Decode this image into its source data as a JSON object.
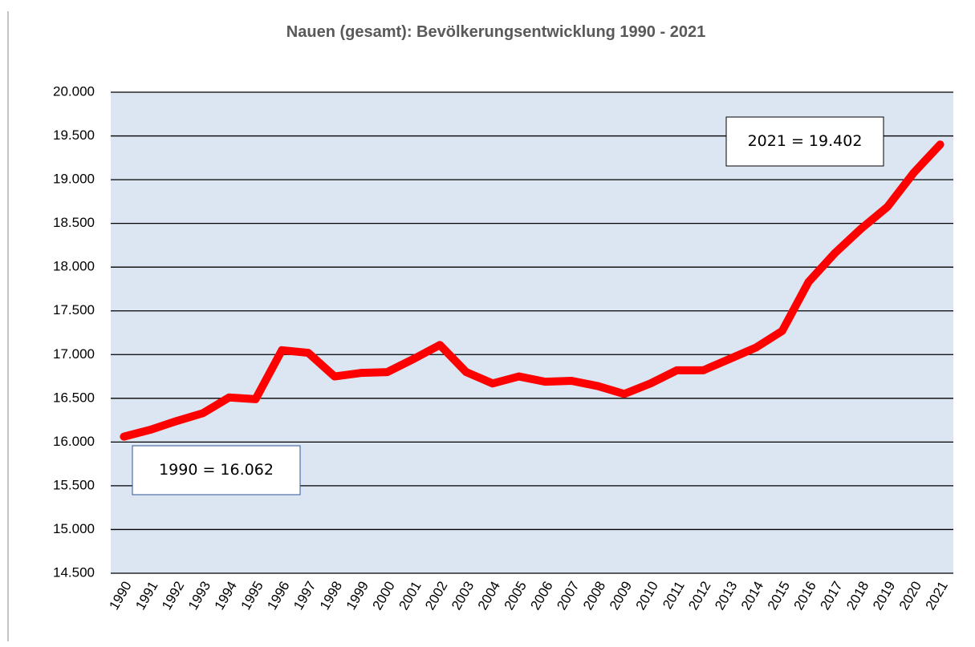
{
  "chart_data": {
    "type": "line",
    "title": "Nauen (gesamt): Bevölkerungsentwicklung 1990 - 2021",
    "categories": [
      "1990",
      "1991",
      "1992",
      "1993",
      "1994",
      "1995",
      "1996",
      "1997",
      "1998",
      "1999",
      "2000",
      "2001",
      "2002",
      "2003",
      "2004",
      "2005",
      "2006",
      "2007",
      "2008",
      "2009",
      "2010",
      "2011",
      "2012",
      "2013",
      "2014",
      "2015",
      "2016",
      "2017",
      "2018",
      "2019",
      "2020",
      "2021"
    ],
    "values": [
      16062,
      16140,
      16240,
      16330,
      16510,
      16490,
      17050,
      17020,
      16750,
      16790,
      16800,
      16950,
      17110,
      16800,
      16670,
      16750,
      16690,
      16700,
      16640,
      16550,
      16670,
      16820,
      16820,
      16950,
      17080,
      17270,
      17830,
      18160,
      18440,
      18690,
      19080,
      19402
    ],
    "color": "#ff0000",
    "plot_background": "#dce6f2",
    "grid": true,
    "ylim": [
      14500,
      20000
    ],
    "yticks": [
      {
        "value": 14500,
        "label": "14.500"
      },
      {
        "value": 15000,
        "label": "15.000"
      },
      {
        "value": 15500,
        "label": "15.500"
      },
      {
        "value": 16000,
        "label": "16.000"
      },
      {
        "value": 16500,
        "label": "16.500"
      },
      {
        "value": 17000,
        "label": "17.000"
      },
      {
        "value": 17500,
        "label": "17.500"
      },
      {
        "value": 18000,
        "label": "18.000"
      },
      {
        "value": 18500,
        "label": "18.500"
      },
      {
        "value": 19000,
        "label": "19.000"
      },
      {
        "value": 19500,
        "label": "19.500"
      },
      {
        "value": 20000,
        "label": "20.000"
      }
    ],
    "annotations": [
      {
        "text": "1990 = 16.062"
      },
      {
        "text": "2021 = 19.402"
      }
    ]
  }
}
